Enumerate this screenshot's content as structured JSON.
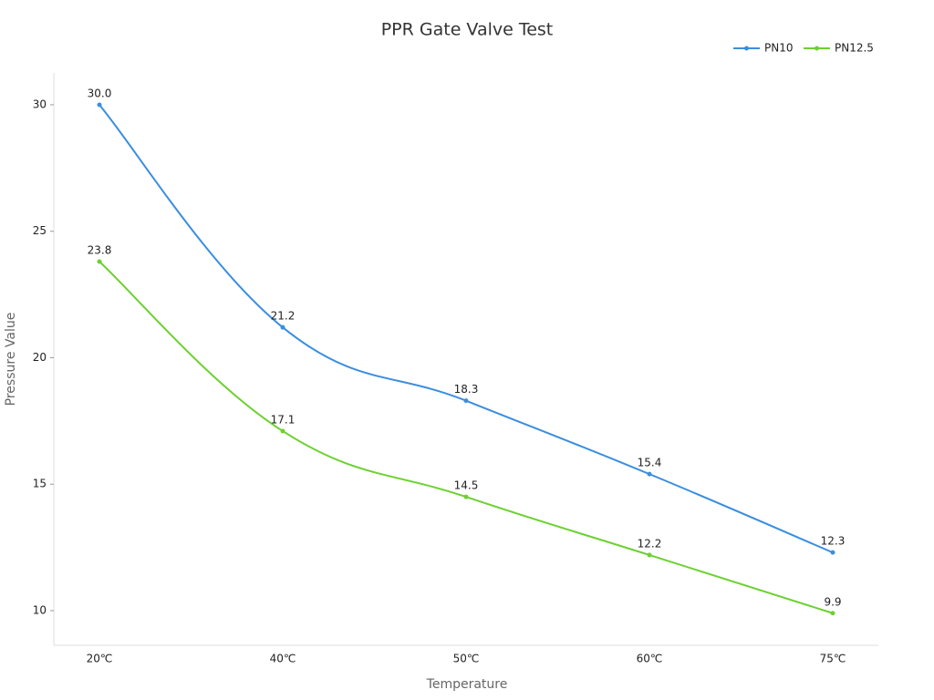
{
  "chart_data": {
    "type": "line",
    "title": "PPR Gate Valve Test",
    "x_label": "Temperature",
    "y_label": "Pressure Value",
    "categories": [
      "20℃",
      "40℃",
      "50℃",
      "60℃",
      "75℃"
    ],
    "series": [
      {
        "name": "PN10",
        "color": "#3a8ee0",
        "values": [
          30,
          21.2,
          18.3,
          15.4,
          12.3
        ],
        "value_labels": [
          "30.0",
          "21.2",
          "18.3",
          "15.4",
          "12.3"
        ]
      },
      {
        "name": "PN12.5",
        "color": "#6cd130",
        "values": [
          23.8,
          17.1,
          14.5,
          12.2,
          9.9
        ],
        "value_labels": [
          "23.8",
          "17.1",
          "14.5",
          "12.2",
          "9.9"
        ]
      }
    ],
    "ylim": [
      8.63,
      31.26
    ],
    "yticks": [
      10,
      15,
      20,
      25,
      30
    ],
    "smooth": true,
    "legend": "top-right"
  }
}
